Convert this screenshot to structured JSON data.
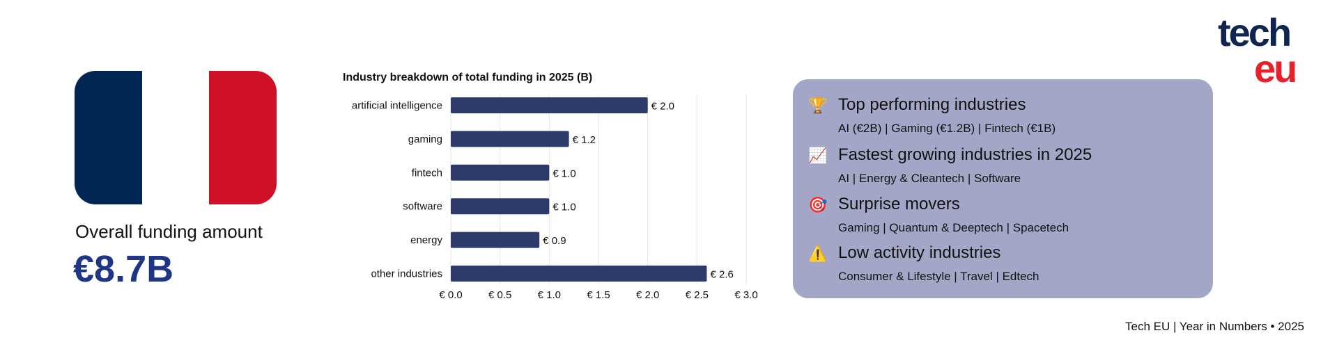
{
  "flag": {
    "colors": [
      "#002654",
      "#ffffff",
      "#ce1126"
    ]
  },
  "overall": {
    "label": "Overall funding amount",
    "value": "€8.7B",
    "color": "#1f3585"
  },
  "chart_data": {
    "type": "bar",
    "orientation": "horizontal",
    "title": "Industry breakdown of total funding in 2025 (B)",
    "categories": [
      "artificial intelligence",
      "gaming",
      "fintech",
      "software",
      "energy",
      "other industries"
    ],
    "values": [
      2.0,
      1.2,
      1.0,
      1.0,
      0.9,
      2.6
    ],
    "data_labels": [
      "€ 2.0",
      "€ 1.2",
      "€ 1.0",
      "€ 1.0",
      "€ 0.9",
      "€ 2.6"
    ],
    "xlim": [
      0,
      3.0
    ],
    "xticks": [
      0,
      0.5,
      1.0,
      1.5,
      2.0,
      2.5,
      3.0
    ],
    "xtick_labels": [
      "€ 0.0",
      "€ 0.5",
      "€ 1.0",
      "€ 1.5",
      "€ 2.0",
      "€ 2.5",
      "€ 3.0"
    ],
    "grid": true,
    "bar_color": "#2d3b6b"
  },
  "panel": {
    "background": "#a3a6c6",
    "sections": [
      {
        "icon": "trophy-icon",
        "glyph": "🏆",
        "heading": "Top performing industries",
        "items": "AI (€2B) | Gaming (€1.2B) | Fintech (€1B)"
      },
      {
        "icon": "chart-increasing-icon",
        "glyph": "📈",
        "heading": "Fastest growing industries in 2025",
        "items": "AI | Energy & Cleantech | Software"
      },
      {
        "icon": "target-icon",
        "glyph": "🎯",
        "heading": "Surprise movers",
        "items": "Gaming | Quantum & Deeptech | Spacetech"
      },
      {
        "icon": "warning-icon",
        "glyph": "⚠️",
        "heading": "Low activity industries",
        "items": "Consumer & Lifestyle | Travel | Edtech"
      }
    ]
  },
  "logo": {
    "line1": "tech",
    "line2": "eu",
    "colors": [
      "#0f2550",
      "#e8202a"
    ]
  },
  "footer": "Tech EU | Year in Numbers • 2025"
}
